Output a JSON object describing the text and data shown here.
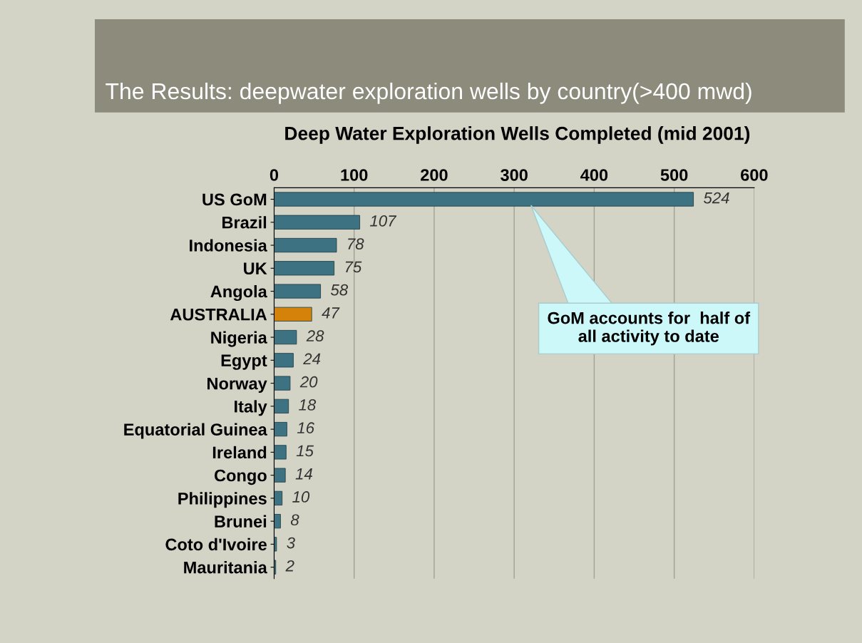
{
  "chart_data": {
    "type": "bar",
    "orientation": "horizontal",
    "title": "The Results: deepwater exploration wells by country(>400 mwd)",
    "subtitle": "Deep Water Exploration Wells Completed (mid 2001)",
    "categories": [
      "US GoM",
      "Brazil",
      "Indonesia",
      "UK",
      "Angola",
      "AUSTRALIA",
      "Nigeria",
      "Egypt",
      "Norway",
      "Italy",
      "Equatorial Guinea",
      "Ireland",
      "Congo",
      "Philippines",
      "Brunei",
      "Coto d'Ivoire",
      "Mauritania"
    ],
    "values": [
      524,
      107,
      78,
      75,
      58,
      47,
      28,
      24,
      20,
      18,
      16,
      15,
      14,
      10,
      8,
      3,
      2
    ],
    "colors": [
      "#3d7282",
      "#3d7282",
      "#3d7282",
      "#3d7282",
      "#3d7282",
      "#d4820a",
      "#3d7282",
      "#3d7282",
      "#3d7282",
      "#3d7282",
      "#3d7282",
      "#3d7282",
      "#3d7282",
      "#3d7282",
      "#3d7282",
      "#3d7282",
      "#3d7282"
    ],
    "xlim": [
      0,
      600
    ],
    "xticks": [
      0,
      100,
      200,
      300,
      400,
      500,
      600
    ],
    "grid": "x",
    "legend": false,
    "data_labels": true,
    "annotations": [
      "GoM accounts for  half of\nall activity to date"
    ]
  }
}
